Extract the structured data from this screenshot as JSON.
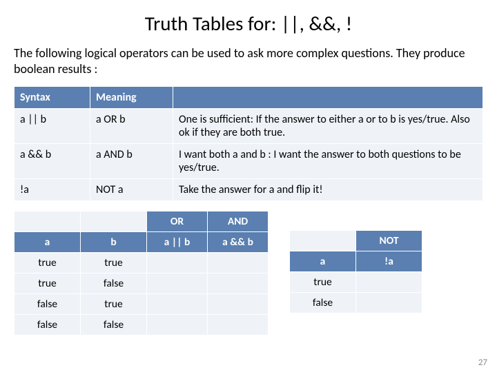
{
  "title": "Truth Tables for:   ||, &&, !",
  "intro": "The following logical operators can be used to ask more complex questions. They produce boolean results :",
  "slide_number": "27",
  "colors": {
    "header_bg": "#5a7fb0",
    "header_fg": "#ffffff",
    "cell_bg": "#eff3f8",
    "cell_border": "#ffffff",
    "page_bg": "#ffffff",
    "text": "#000000",
    "slidenum": "#8a8a8a"
  },
  "t1": {
    "headers": {
      "syntax": "Syntax",
      "meaning": "Meaning"
    },
    "rows": [
      {
        "syntax": "a || b",
        "meaning": "a OR  b",
        "desc": "One is sufficient:  If the answer to either a or to b is yes/true. Also ok if they are both true."
      },
      {
        "syntax": "a && b",
        "meaning": "a AND b",
        "desc": "I want both a and b :  I want the answer to both questions to be yes/true."
      },
      {
        "syntax": "!a",
        "meaning": "NOT a",
        "desc": "Take the answer for a and flip it!"
      }
    ]
  },
  "t2": {
    "top": {
      "or": "OR",
      "and": "AND"
    },
    "headers": {
      "a": "a",
      "b": "b",
      "or": "a || b",
      "and": "a && b"
    },
    "rows": [
      {
        "a": "true",
        "b": "true"
      },
      {
        "a": "true",
        "b": "false"
      },
      {
        "a": "false",
        "b": "true"
      },
      {
        "a": "false",
        "b": "false"
      }
    ]
  },
  "t3": {
    "top": {
      "not": "NOT"
    },
    "headers": {
      "a": "a",
      "nota": "!a"
    },
    "rows": [
      {
        "a": "true"
      },
      {
        "a": "false"
      }
    ]
  }
}
